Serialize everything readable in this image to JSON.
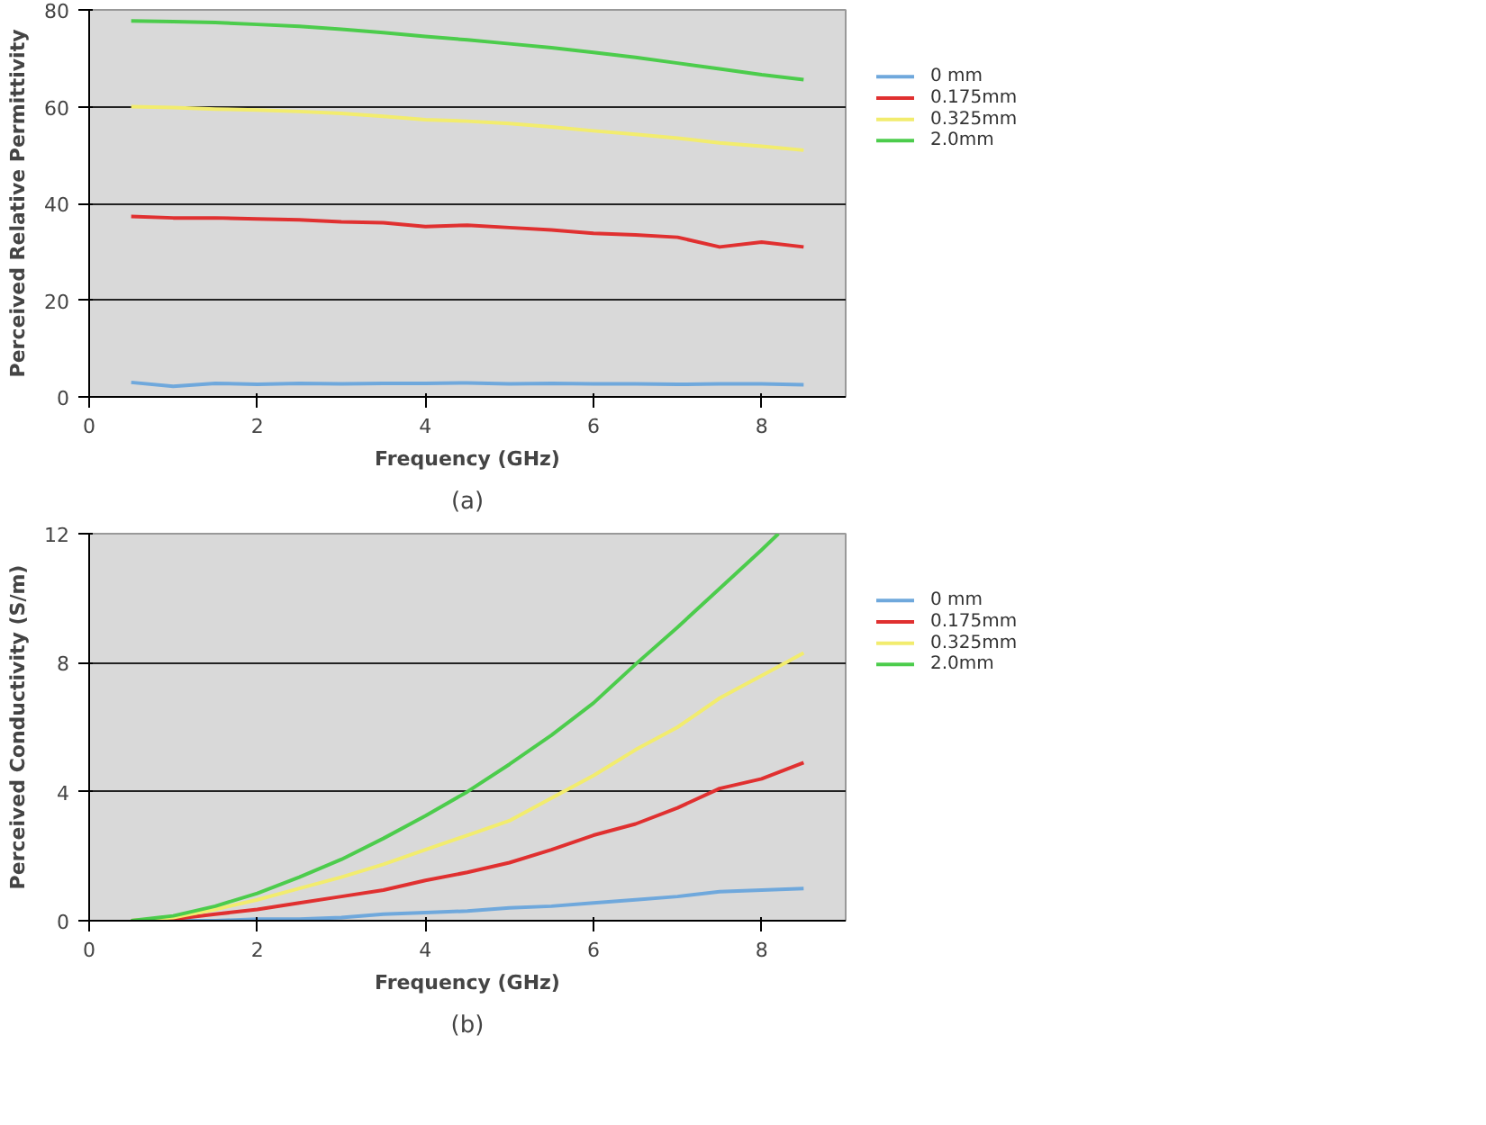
{
  "chart_data": [
    {
      "type": "line",
      "title": "(a)",
      "xlabel": "Frequency (GHz)",
      "ylabel": "Perceived Relative Permittivity",
      "x": [
        0.5,
        1,
        1.5,
        2,
        2.5,
        3,
        3.5,
        4,
        4.5,
        5,
        5.5,
        6,
        6.5,
        7,
        7.5,
        8,
        8.5
      ],
      "xlim": [
        0,
        9
      ],
      "xticks": [
        0,
        2,
        4,
        6,
        8
      ],
      "ylim": [
        0,
        80
      ],
      "yticks": [
        0,
        20,
        40,
        60,
        80
      ],
      "grid": "y",
      "legend": "right",
      "marker": "none",
      "line_style": "solid",
      "series": [
        {
          "name": "0 mm",
          "color": "#6fa8dc",
          "values": [
            3,
            2.2,
            2.8,
            2.6,
            2.8,
            2.7,
            2.8,
            2.8,
            2.9,
            2.7,
            2.8,
            2.7,
            2.7,
            2.6,
            2.7,
            2.7,
            2.5
          ]
        },
        {
          "name": "0.175mm",
          "color": "#e03030",
          "values": [
            37.3,
            37,
            37,
            36.8,
            36.6,
            36.2,
            36,
            35.2,
            35.5,
            35,
            34.5,
            33.8,
            33.5,
            33,
            31,
            32,
            31
          ]
        },
        {
          "name": "0.325mm",
          "color": "#f2ec6e",
          "values": [
            60,
            59.8,
            59.5,
            59.3,
            59,
            58.6,
            58,
            57.3,
            57,
            56.5,
            55.8,
            55,
            54.3,
            53.5,
            52.5,
            51.8,
            51
          ]
        },
        {
          "name": "2.0mm",
          "color": "#4ccc4c",
          "values": [
            77.7,
            77.6,
            77.4,
            77,
            76.6,
            76,
            75.3,
            74.5,
            73.8,
            73,
            72.2,
            71.2,
            70.2,
            69,
            67.8,
            66.6,
            65.6
          ]
        }
      ]
    },
    {
      "type": "line",
      "title": "(b)",
      "xlabel": "Frequency (GHz)",
      "ylabel": "Perceived Conductivity (S/m)",
      "x": [
        0.5,
        1,
        1.5,
        2,
        2.5,
        3,
        3.5,
        4,
        4.5,
        5,
        5.5,
        6,
        6.5,
        7,
        7.5,
        8,
        8.5
      ],
      "xlim": [
        0,
        9
      ],
      "xticks": [
        0,
        2,
        4,
        6,
        8
      ],
      "ylim": [
        0,
        12
      ],
      "yticks": [
        0,
        4,
        8,
        12
      ],
      "grid": "y",
      "legend": "right",
      "marker": "none",
      "line_style": "solid",
      "series": [
        {
          "name": "0 mm",
          "color": "#6fa8dc",
          "values": [
            0,
            0,
            0,
            0.05,
            0.05,
            0.1,
            0.2,
            0.25,
            0.3,
            0.4,
            0.45,
            0.55,
            0.65,
            0.75,
            0.9,
            0.95,
            1.0
          ]
        },
        {
          "name": "0.175mm",
          "color": "#e03030",
          "values": [
            0,
            0.05,
            0.2,
            0.35,
            0.55,
            0.75,
            0.95,
            1.25,
            1.5,
            1.8,
            2.2,
            2.65,
            3.0,
            3.5,
            4.1,
            4.4,
            4.9
          ]
        },
        {
          "name": "0.325mm",
          "color": "#f2ec6e",
          "values": [
            0,
            0.1,
            0.35,
            0.65,
            1.0,
            1.35,
            1.75,
            2.2,
            2.65,
            3.1,
            3.8,
            4.5,
            5.3,
            6.0,
            6.9,
            7.6,
            8.3
          ]
        },
        {
          "name": "2.0mm",
          "color": "#4ccc4c",
          "x": [
            0.5,
            1,
            1.5,
            2,
            2.5,
            3,
            3.5,
            4,
            4.5,
            5,
            5.5,
            6,
            6.5,
            7,
            7.5,
            8,
            8.2
          ],
          "values": [
            0,
            0.15,
            0.45,
            0.85,
            1.35,
            1.9,
            2.55,
            3.25,
            4.0,
            4.85,
            5.75,
            6.75,
            7.95,
            9.1,
            10.3,
            11.5,
            12
          ]
        }
      ]
    }
  ]
}
